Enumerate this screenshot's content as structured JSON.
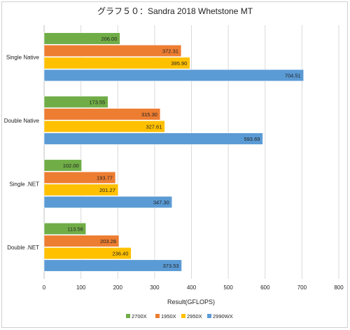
{
  "chart_data": {
    "type": "bar",
    "orientation": "horizontal",
    "title": "グラフ５０：Sandra 2018 Whetstone MT",
    "xlabel": "Result(GFLOPS)",
    "ylabel": "",
    "xlim": [
      0,
      800
    ],
    "xticks": [
      0,
      100,
      200,
      300,
      400,
      500,
      600,
      700,
      800
    ],
    "grid": true,
    "legend_position": "bottom",
    "categories": [
      "Single Native",
      "Double Native",
      "Single .NET",
      "Double .NET"
    ],
    "series": [
      {
        "name": "2700X",
        "color": "#70ad47",
        "values": [
          206.0,
          173.55,
          102.0,
          113.56
        ],
        "labels": [
          "206.00",
          "173.55",
          "102.00",
          "113.56"
        ]
      },
      {
        "name": "1950X",
        "color": "#ed7d31",
        "values": [
          372.31,
          315.3,
          193.77,
          203.28
        ],
        "labels": [
          "372.31",
          "315.30",
          "193.77",
          "203.28"
        ]
      },
      {
        "name": "2950X",
        "color": "#ffc000",
        "values": [
          395.9,
          327.61,
          201.27,
          236.4
        ],
        "labels": [
          "395.90",
          "327.61",
          "201.27",
          "236.40"
        ]
      },
      {
        "name": "2990WX",
        "color": "#5b9bd5",
        "values": [
          704.51,
          593.69,
          347.3,
          373.53
        ],
        "labels": [
          "704.51",
          "593.69",
          "347.30",
          "373.53"
        ]
      }
    ]
  }
}
